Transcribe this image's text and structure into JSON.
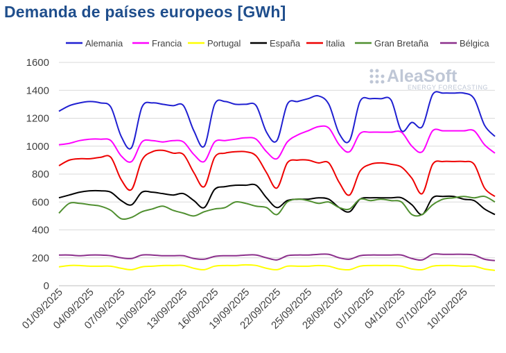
{
  "title": "Demanda de países europeos [GWh]",
  "logo": {
    "name": "AleaSoft",
    "tagline": "ENERGY FORECASTING"
  },
  "chart_data": {
    "type": "line",
    "ylim": [
      0,
      1600
    ],
    "yticks": [
      0,
      200,
      400,
      600,
      800,
      1000,
      1200,
      1400,
      1600
    ],
    "grid": true,
    "legend_position": "top",
    "x_tick_labels": [
      "01/09/2025",
      "04/09/2025",
      "07/09/2025",
      "10/09/2025",
      "13/09/2025",
      "16/09/2025",
      "19/09/2025",
      "22/09/2025",
      "25/09/2025",
      "28/09/2025",
      "01/10/2025",
      "04/10/2025",
      "07/10/2025",
      "10/10/2025"
    ],
    "series": [
      {
        "name": "Alemania",
        "color": "#1f1fd1",
        "values": [
          1250,
          1290,
          1310,
          1320,
          1310,
          1280,
          1070,
          990,
          1280,
          1310,
          1300,
          1290,
          1290,
          1110,
          1000,
          1300,
          1320,
          1300,
          1300,
          1290,
          1100,
          1040,
          1300,
          1320,
          1340,
          1360,
          1300,
          1090,
          1040,
          1320,
          1340,
          1340,
          1330,
          1110,
          1170,
          1140,
          1370,
          1380,
          1380,
          1380,
          1340,
          1150,
          1070
        ]
      },
      {
        "name": "Francia",
        "color": "#ff00ff",
        "values": [
          1010,
          1020,
          1040,
          1050,
          1050,
          1040,
          930,
          890,
          1030,
          1040,
          1030,
          1040,
          1030,
          940,
          890,
          1030,
          1040,
          1050,
          1060,
          1050,
          960,
          910,
          1030,
          1080,
          1110,
          1140,
          1130,
          1010,
          960,
          1090,
          1100,
          1100,
          1100,
          1100,
          1000,
          960,
          1110,
          1110,
          1110,
          1110,
          1110,
          1010,
          950
        ]
      },
      {
        "name": "Portugal",
        "color": "#ffff00",
        "values": [
          135,
          145,
          145,
          140,
          140,
          140,
          125,
          115,
          135,
          140,
          145,
          145,
          145,
          125,
          115,
          140,
          145,
          145,
          150,
          145,
          125,
          115,
          140,
          140,
          140,
          145,
          140,
          120,
          115,
          140,
          145,
          145,
          145,
          140,
          120,
          115,
          140,
          145,
          145,
          140,
          140,
          120,
          110
        ]
      },
      {
        "name": "España",
        "color": "#000000",
        "values": [
          630,
          650,
          670,
          680,
          680,
          670,
          610,
          580,
          670,
          670,
          660,
          650,
          660,
          610,
          560,
          690,
          710,
          720,
          720,
          720,
          630,
          560,
          610,
          620,
          620,
          630,
          620,
          560,
          530,
          620,
          630,
          630,
          630,
          630,
          580,
          510,
          630,
          640,
          640,
          620,
          610,
          550,
          510
        ]
      },
      {
        "name": "Italia",
        "color": "#ee0000",
        "values": [
          860,
          900,
          910,
          910,
          920,
          920,
          760,
          690,
          900,
          960,
          970,
          950,
          940,
          810,
          710,
          920,
          950,
          960,
          960,
          930,
          810,
          700,
          880,
          900,
          900,
          880,
          880,
          740,
          650,
          820,
          870,
          880,
          870,
          850,
          770,
          660,
          870,
          890,
          890,
          890,
          870,
          700,
          640
        ]
      },
      {
        "name": "Gran Bretaña",
        "color": "#4f8f2f",
        "values": [
          520,
          590,
          590,
          580,
          570,
          540,
          480,
          490,
          530,
          550,
          570,
          540,
          520,
          500,
          530,
          550,
          560,
          600,
          590,
          570,
          560,
          510,
          600,
          620,
          610,
          590,
          600,
          560,
          550,
          620,
          610,
          620,
          610,
          600,
          510,
          510,
          580,
          620,
          630,
          640,
          630,
          640,
          600
        ]
      },
      {
        "name": "Bélgica",
        "color": "#8b2f8b",
        "values": [
          220,
          220,
          215,
          220,
          220,
          215,
          200,
          195,
          220,
          220,
          215,
          215,
          215,
          195,
          190,
          210,
          215,
          215,
          220,
          220,
          200,
          185,
          215,
          220,
          220,
          225,
          225,
          200,
          190,
          215,
          220,
          220,
          220,
          220,
          195,
          185,
          225,
          225,
          225,
          225,
          220,
          190,
          180
        ]
      }
    ]
  }
}
